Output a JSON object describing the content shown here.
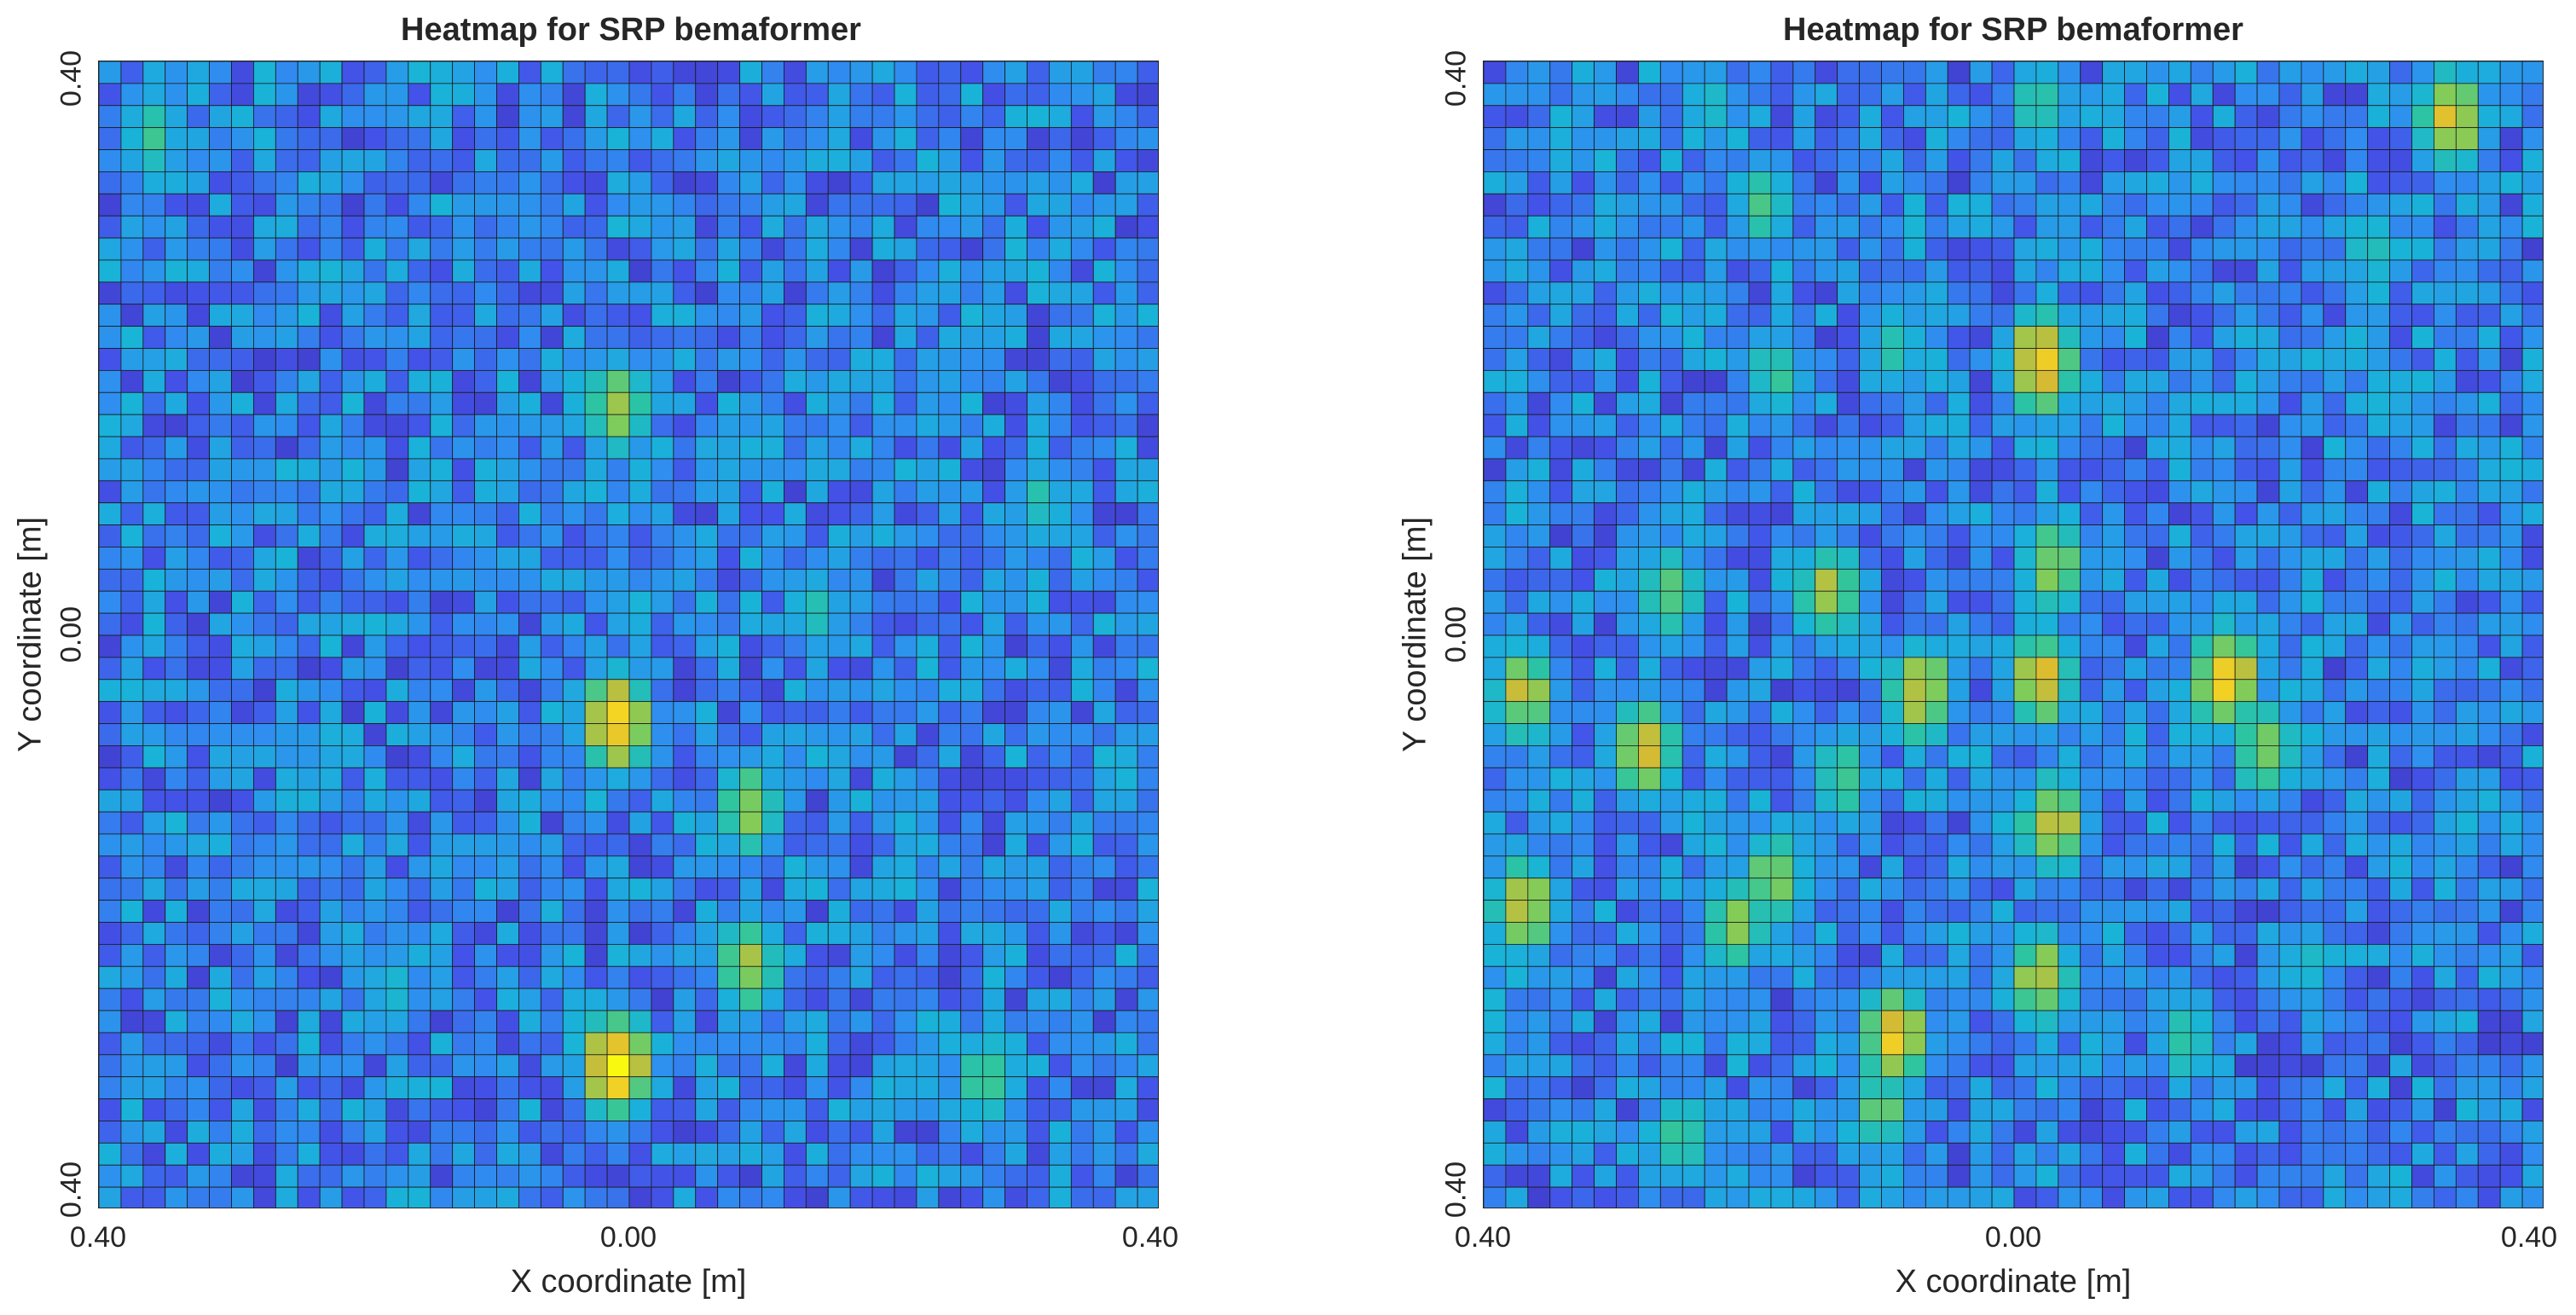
{
  "chart_data": [
    {
      "type": "heatmap",
      "title": "Heatmap for SRP bemaformer",
      "xlabel": "X coordinate [m]",
      "ylabel": "Y coordinate [m]",
      "x_ticks": [
        "0.40",
        "0.00",
        "0.40"
      ],
      "y_ticks": [
        "0.40",
        "0.00",
        "0.40"
      ],
      "xlim": [
        -0.4,
        0.4
      ],
      "ylim": [
        -0.4,
        0.4
      ],
      "grid_size": [
        48,
        52
      ],
      "colormap": [
        "#3e26a8",
        "#4352e8",
        "#2f8ef0",
        "#19b3d8",
        "#2dc5a0",
        "#81cc59",
        "#d8ba32",
        "#f5d423",
        "#f9fb0e"
      ],
      "hotspots": [
        {
          "x": -0.01,
          "y": -0.3,
          "value": 1.0
        },
        {
          "x": -0.01,
          "y": -0.06,
          "value": 0.95
        },
        {
          "x": -0.01,
          "y": 0.16,
          "value": 0.7
        },
        {
          "x": -0.36,
          "y": 0.35,
          "value": 0.55
        },
        {
          "x": 0.09,
          "y": -0.12,
          "value": 0.68
        },
        {
          "x": 0.09,
          "y": -0.23,
          "value": 0.72
        },
        {
          "x": 0.27,
          "y": -0.31,
          "value": 0.62
        },
        {
          "x": 0.31,
          "y": 0.09,
          "value": 0.5
        },
        {
          "x": 0.14,
          "y": 0.02,
          "value": 0.48
        },
        {
          "x": -0.18,
          "y": -0.25,
          "value": 0.45
        },
        {
          "x": 0.37,
          "y": -0.1,
          "value": 0.42
        }
      ]
    },
    {
      "type": "heatmap",
      "title": "Heatmap for SRP bemaformer",
      "xlabel": "X coordinate [m]",
      "ylabel": "Y coordinate [m]",
      "x_ticks": [
        "0.40",
        "0.00",
        "0.40"
      ],
      "y_ticks": [
        "0.40",
        "0.00",
        "0.40"
      ],
      "xlim": [
        -0.4,
        0.4
      ],
      "ylim": [
        -0.4,
        0.4
      ],
      "grid_size": [
        48,
        52
      ],
      "colormap": [
        "#3e26a8",
        "#4352e8",
        "#2f8ef0",
        "#19b3d8",
        "#2dc5a0",
        "#81cc59",
        "#d8ba32",
        "#f5d423",
        "#f9fb0e"
      ],
      "hotspots": [
        {
          "x": 0.02,
          "y": 0.19,
          "value": 0.95
        },
        {
          "x": 0.33,
          "y": 0.36,
          "value": 0.85
        },
        {
          "x": 0.16,
          "y": -0.03,
          "value": 0.93
        },
        {
          "x": 0.19,
          "y": -0.08,
          "value": 0.7
        },
        {
          "x": 0.02,
          "y": -0.03,
          "value": 0.82
        },
        {
          "x": -0.07,
          "y": -0.04,
          "value": 0.8
        },
        {
          "x": 0.03,
          "y": -0.13,
          "value": 0.8
        },
        {
          "x": -0.18,
          "y": -0.17,
          "value": 0.72
        },
        {
          "x": -0.21,
          "y": -0.2,
          "value": 0.7
        },
        {
          "x": -0.09,
          "y": -0.28,
          "value": 0.88
        },
        {
          "x": 0.02,
          "y": -0.24,
          "value": 0.78
        },
        {
          "x": -0.28,
          "y": -0.08,
          "value": 0.82
        },
        {
          "x": -0.37,
          "y": -0.04,
          "value": 0.75
        },
        {
          "x": -0.37,
          "y": -0.19,
          "value": 0.8
        },
        {
          "x": -0.14,
          "y": 0.03,
          "value": 0.75
        },
        {
          "x": 0.03,
          "y": 0.05,
          "value": 0.7
        },
        {
          "x": -0.26,
          "y": 0.03,
          "value": 0.62
        },
        {
          "x": -0.18,
          "y": 0.18,
          "value": 0.55
        },
        {
          "x": -0.19,
          "y": 0.3,
          "value": 0.55
        },
        {
          "x": -0.13,
          "y": -0.1,
          "value": 0.58
        },
        {
          "x": -0.1,
          "y": -0.33,
          "value": 0.62
        },
        {
          "x": -0.25,
          "y": -0.35,
          "value": 0.55
        },
        {
          "x": 0.13,
          "y": -0.28,
          "value": 0.55
        },
        {
          "x": 0.02,
          "y": 0.37,
          "value": 0.55
        },
        {
          "x": -0.09,
          "y": 0.2,
          "value": 0.52
        },
        {
          "x": 0.27,
          "y": 0.27,
          "value": 0.48
        },
        {
          "x": 0.34,
          "y": -0.13,
          "value": 0.42
        },
        {
          "x": -0.23,
          "y": 0.37,
          "value": 0.45
        },
        {
          "x": 0.22,
          "y": -0.23,
          "value": 0.45
        }
      ]
    }
  ]
}
